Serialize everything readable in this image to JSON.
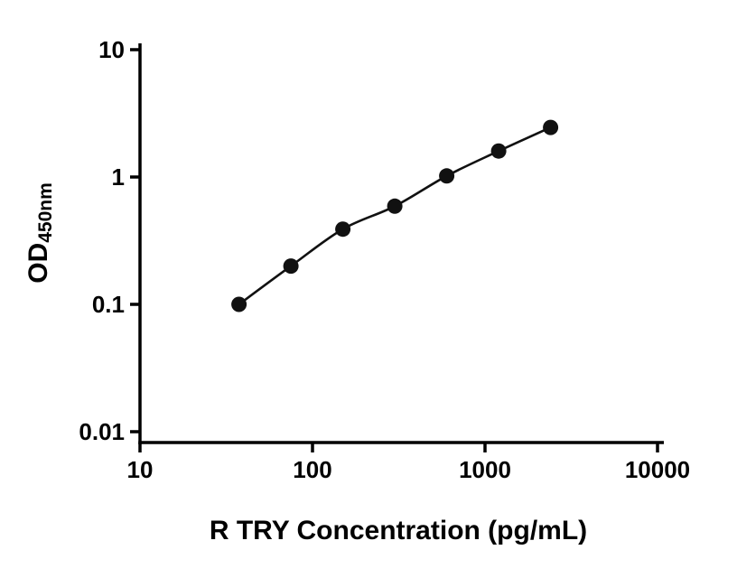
{
  "chart_data": {
    "type": "scatter",
    "title": "",
    "xlabel": "R TRY Concentration (pg/mL)",
    "ylabel": "OD",
    "ylabel_sub": "450nm",
    "x_scale": "log",
    "y_scale": "log",
    "xlim": [
      10,
      10000
    ],
    "ylim": [
      0.01,
      10
    ],
    "x_ticks": [
      "10",
      "100",
      "1000",
      "10000"
    ],
    "y_ticks": [
      "0.01",
      "0.1",
      "1",
      "10"
    ],
    "grid": false,
    "legend": "none",
    "series": [
      {
        "name": "standard-curve",
        "x": [
          37.5,
          75,
          150,
          300,
          600,
          1200,
          2400
        ],
        "y": [
          0.1,
          0.2,
          0.39,
          0.59,
          1.02,
          1.6,
          2.45
        ]
      }
    ],
    "marker_color": "#111111",
    "line_color": "#111111",
    "axis_color": "#000000"
  }
}
